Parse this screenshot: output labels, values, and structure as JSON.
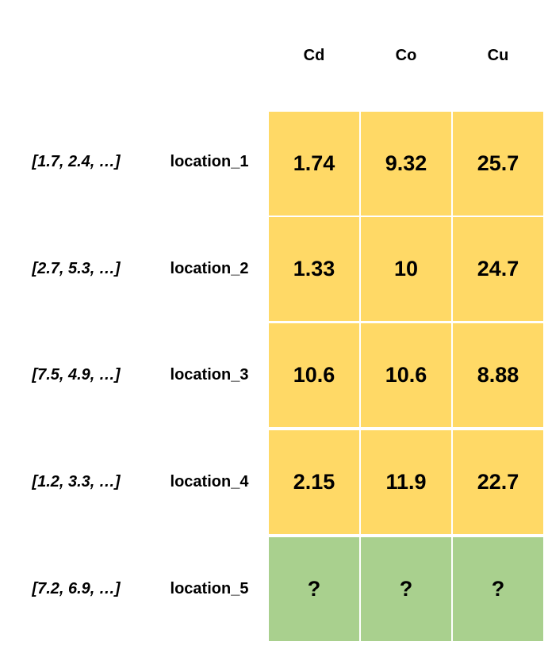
{
  "colors": {
    "known": "#ffd966",
    "unknown": "#a9d08e",
    "gridline": "#ffffff"
  },
  "columns": [
    "Cd",
    "Co",
    "Cu"
  ],
  "rows": [
    {
      "feature": "[1.7, 2.4, …]",
      "location": "location_1",
      "values": [
        "1.74",
        "9.32",
        "25.7"
      ],
      "status": "known"
    },
    {
      "feature": "[2.7, 5.3, …]",
      "location": "location_2",
      "values": [
        "1.33",
        "10",
        "24.7"
      ],
      "status": "known"
    },
    {
      "feature": "[7.5, 4.9, …]",
      "location": "location_3",
      "values": [
        "10.6",
        "10.6",
        "8.88"
      ],
      "status": "known"
    },
    {
      "feature": "[1.2, 3.3, …]",
      "location": "location_4",
      "values": [
        "2.15",
        "11.9",
        "22.7"
      ],
      "status": "known"
    },
    {
      "feature": "[7.2, 6.9, …]",
      "location": "location_5",
      "values": [
        "?",
        "?",
        "?"
      ],
      "status": "unknown"
    }
  ]
}
